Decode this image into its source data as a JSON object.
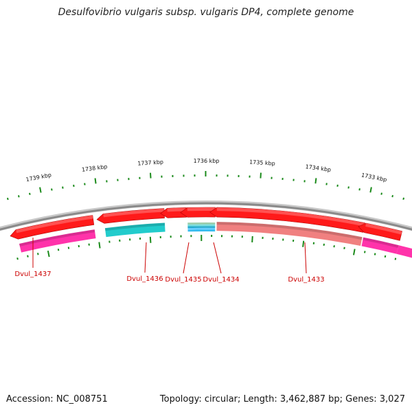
{
  "title": "Desulfovibrio vulgaris subsp. vulgaris DP4, complete genome",
  "footer": {
    "accession": "Accession: NC_008751",
    "summary": "Topology: circular; Length: 3,462,887 bp; Genes: 3,027"
  },
  "colors": {
    "backbone": "#8a8a8a",
    "cds": "#ff1a1a",
    "gene_label": "#cc0000",
    "tick": "#1a8a1a",
    "magenta": "#ff33aa",
    "cyan": "#22cccc",
    "salmon": "#f08080"
  },
  "chart_data": {
    "type": "genome-map",
    "scale_labels": [
      {
        "label": "1739 kbp",
        "value": 1739
      },
      {
        "label": "1738 kbp",
        "value": 1738
      },
      {
        "label": "1737 kbp",
        "value": 1737
      },
      {
        "label": "1736 kbp",
        "value": 1736
      },
      {
        "label": "1735 kbp",
        "value": 1735
      },
      {
        "label": "1734 kbp",
        "value": 1734
      },
      {
        "label": "1733 kbp",
        "value": 1733
      }
    ],
    "genes": [
      {
        "label": "Dvul_1437",
        "strand": "-",
        "track2": "magenta",
        "start_kbp": 1739.6,
        "end_kbp": 1738.15
      },
      {
        "label": "Dvul_1436",
        "strand": "-",
        "track2": "cyan",
        "start_kbp": 1737.95,
        "end_kbp": 1736.8
      },
      {
        "label": "Dvul_1435",
        "strand": "-",
        "track2": "none",
        "start_kbp": 1736.74,
        "end_kbp": 1736.38
      },
      {
        "label": "Dvul_1434",
        "strand": "-",
        "track2": "cyan-stripes",
        "start_kbp": 1736.36,
        "end_kbp": 1735.83
      },
      {
        "label": "Dvul_1433",
        "strand": "-",
        "track2": "salmon",
        "start_kbp": 1735.8,
        "end_kbp": 1733.0
      },
      {
        "label": "",
        "strand": "-",
        "track2": "magenta",
        "start_kbp": 1732.98,
        "end_kbp": 1732.3
      }
    ]
  }
}
